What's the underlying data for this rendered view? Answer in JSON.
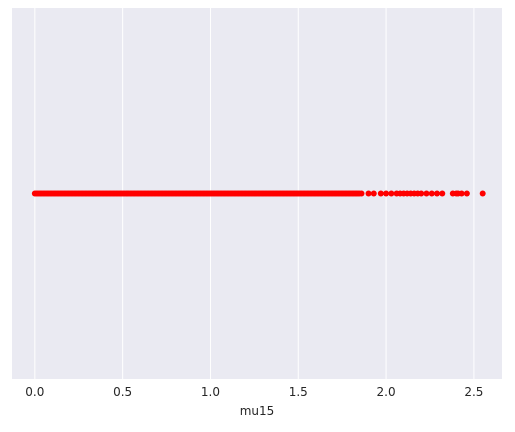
{
  "chart_data": {
    "type": "scatter",
    "title": "",
    "xlabel": "mu15",
    "ylabel": "",
    "xlim": [
      -0.13,
      2.66
    ],
    "xticks": [
      0.0,
      0.5,
      1.0,
      1.5,
      2.0,
      2.5
    ],
    "xtick_labels": [
      "0.0",
      "0.5",
      "1.0",
      "1.5",
      "2.0",
      "2.5"
    ],
    "grid": true,
    "y_constant": 0,
    "marker_color": "#ff0000",
    "background_color": "#eaeaf2",
    "grid_color": "#ffffff",
    "dense_range": [
      0.0,
      1.85
    ],
    "sparse_points": [
      1.86,
      1.9,
      1.93,
      1.97,
      2.0,
      2.03,
      2.06,
      2.08,
      2.1,
      2.12,
      2.14,
      2.16,
      2.18,
      2.2,
      2.23,
      2.26,
      2.29,
      2.32,
      2.38,
      2.4,
      2.41,
      2.43,
      2.46,
      2.55
    ]
  }
}
